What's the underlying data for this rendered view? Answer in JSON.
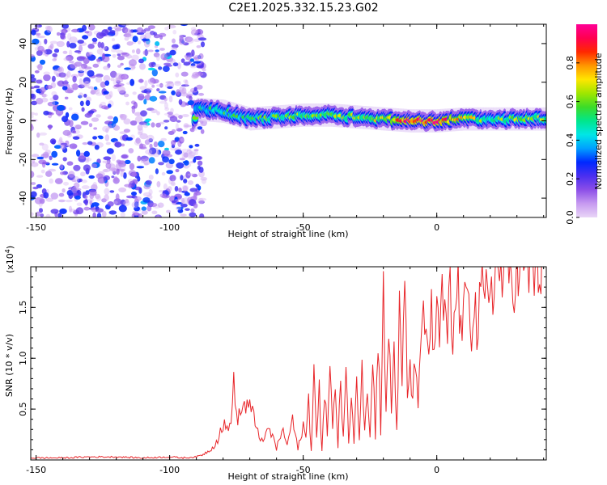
{
  "title": "C2E1.2025.332.15.23.G02",
  "colors": {
    "background": "#ffffff",
    "snr_line": "#e8262a",
    "noise_purple": "#7a2ee0",
    "axis": "#000000"
  },
  "colormap_stops": [
    "#e9d6f7",
    "#c79af0",
    "#8c4fe8",
    "#4b2ff0",
    "#0028ff",
    "#00a0ff",
    "#00e6e6",
    "#00e68c",
    "#3cdc28",
    "#a0e600",
    "#ffe600",
    "#ff9600",
    "#ff2800",
    "#ff0050",
    "#ff0096"
  ],
  "chart_data": [
    {
      "type": "heatmap",
      "name": "spectrogram",
      "title": "C2E1.2025.332.15.23.G02",
      "xlabel": "Height of straight line (km)",
      "ylabel": "Frequency (Hz)",
      "xlim": [
        -152,
        41
      ],
      "ylim": [
        -50,
        50
      ],
      "xticks": [
        -150,
        -100,
        -50,
        0
      ],
      "xtick_labels": [
        "-150",
        "-100",
        "-50",
        "0"
      ],
      "yticks": [
        -40,
        -20,
        0,
        20,
        40
      ],
      "ytick_labels": [
        "-40",
        "-20",
        "0",
        "20",
        "40"
      ],
      "noise_region_x": [
        -152,
        -91
      ],
      "signal_region_x": [
        -91,
        41
      ],
      "signal_center_hz": 2,
      "signal_band": [
        {
          "x": -90,
          "f": 6,
          "amp": 0.45
        },
        {
          "x": -80,
          "f": 5,
          "amp": 0.5
        },
        {
          "x": -70,
          "f": 1,
          "amp": 0.5
        },
        {
          "x": -60,
          "f": 2,
          "amp": 0.55
        },
        {
          "x": -50,
          "f": 3,
          "amp": 0.6
        },
        {
          "x": -40,
          "f": 3,
          "amp": 0.6
        },
        {
          "x": -30,
          "f": 2,
          "amp": 0.6
        },
        {
          "x": -20,
          "f": 1,
          "amp": 0.65
        },
        {
          "x": -10,
          "f": 0,
          "amp": 0.9
        },
        {
          "x": 0,
          "f": 0,
          "amp": 0.9
        },
        {
          "x": 10,
          "f": 1,
          "amp": 0.7
        },
        {
          "x": 20,
          "f": 1,
          "amp": 0.55
        },
        {
          "x": 30,
          "f": 1,
          "amp": 0.6
        },
        {
          "x": 41,
          "f": 1,
          "amp": 0.6
        }
      ]
    },
    {
      "type": "line",
      "name": "snr",
      "xlabel": "Height of straight line (km)",
      "ylabel": "SNR (10 * v/v)",
      "y_multiplier": "(x10",
      "y_multiplier_exp": "4",
      "y_multiplier_close": ")",
      "xlim": [
        -152,
        41
      ],
      "ylim": [
        0,
        1.9
      ],
      "xticks": [
        -150,
        -100,
        -50,
        0
      ],
      "xtick_labels": [
        "-150",
        "-100",
        "-50",
        "0"
      ],
      "yticks": [
        0.5,
        1.0,
        1.5
      ],
      "ytick_labels": [
        "0.5",
        "1.0",
        "1.5"
      ],
      "series": [
        {
          "name": "SNR",
          "x": [
            -152,
            -140,
            -130,
            -120,
            -110,
            -100,
            -95,
            -90,
            -87,
            -84,
            -82,
            -80,
            -78,
            -77,
            -76,
            -75,
            -73,
            -71,
            -69,
            -67,
            -65,
            -63,
            -62,
            -61,
            -60,
            -58,
            -56,
            -54,
            -52,
            -50,
            -49,
            -48,
            -47,
            -46,
            -45,
            -44,
            -43,
            -42,
            -41,
            -40,
            -39,
            -38,
            -37,
            -36,
            -35,
            -34,
            -33,
            -32,
            -31,
            -30,
            -29,
            -28,
            -27,
            -26,
            -25,
            -24,
            -23,
            -22,
            -21,
            -20,
            -19,
            -18,
            -17,
            -16,
            -15,
            -14,
            -13,
            -12,
            -11,
            -10,
            -9,
            -8,
            -7,
            -6,
            -5,
            -4,
            -3,
            -2,
            -1,
            0,
            1,
            2,
            3,
            4,
            5,
            6,
            7,
            8,
            9,
            10,
            11,
            12,
            13,
            14,
            15,
            16,
            17,
            18,
            19,
            20,
            22,
            24,
            26,
            28,
            30,
            32,
            34,
            36,
            38,
            40,
            41
          ],
          "y": [
            0.02,
            0.02,
            0.03,
            0.03,
            0.02,
            0.03,
            0.02,
            0.03,
            0.06,
            0.12,
            0.2,
            0.35,
            0.28,
            0.45,
            0.75,
            0.4,
            0.5,
            0.55,
            0.45,
            0.3,
            0.15,
            0.35,
            0.2,
            0.25,
            0.1,
            0.3,
            0.15,
            0.4,
            0.1,
            0.35,
            0.2,
            0.6,
            0.1,
            0.9,
            0.2,
            0.65,
            0.1,
            0.75,
            0.2,
            1.05,
            0.3,
            0.7,
            0.1,
            0.8,
            0.25,
            0.9,
            0.2,
            0.6,
            0.15,
            0.95,
            0.2,
            1.05,
            0.3,
            0.8,
            0.2,
            1.0,
            0.25,
            1.25,
            0.3,
            1.8,
            0.4,
            1.3,
            0.5,
            1.1,
            0.3,
            1.4,
            0.7,
            1.75,
            0.6,
            1.0,
            0.5,
            1.1,
            0.6,
            0.95,
            1.35,
            1.25,
            1.15,
            1.4,
            1.1,
            1.35,
            1.2,
            1.6,
            1.35,
            1.2,
            1.65,
            1.05,
            1.5,
            1.8,
            1.2,
            1.55,
            1.4,
            1.85,
            1.3,
            1.7,
            1.2,
            1.45,
            1.6,
            1.5,
            1.7,
            1.75,
            1.8,
            1.85,
            1.75,
            1.88,
            1.82,
            1.9,
            1.85,
            1.92,
            1.88,
            1.94,
            1.93
          ]
        }
      ]
    }
  ],
  "colorbar": {
    "label": "Normalized spectral amplitude",
    "range": [
      0,
      1
    ],
    "ticks": [
      0.0,
      0.2,
      0.4,
      0.6,
      0.8
    ],
    "tick_labels": [
      "0.0",
      "0.2",
      "0.4",
      "0.6",
      "0.8"
    ]
  }
}
